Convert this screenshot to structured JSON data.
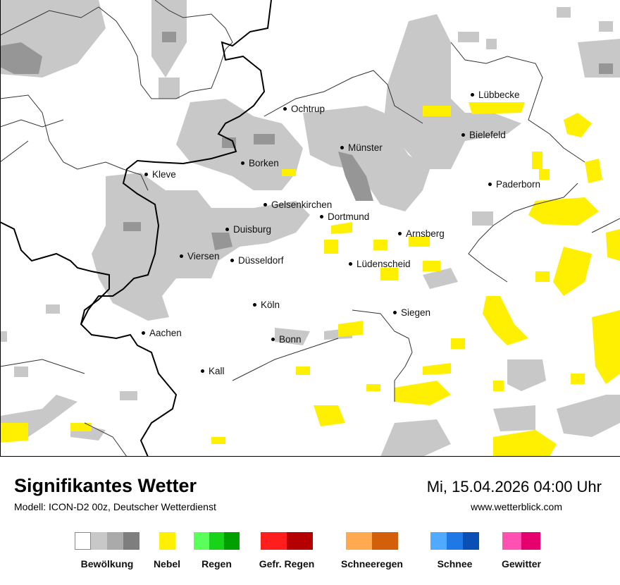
{
  "map": {
    "cities": [
      {
        "name": "Lübbecke",
        "key": "luebbecke"
      },
      {
        "name": "Ochtrup",
        "key": "ochtrup"
      },
      {
        "name": "Bielefeld",
        "key": "bielefeld"
      },
      {
        "name": "Münster",
        "key": "muenster"
      },
      {
        "name": "Kleve",
        "key": "kleve"
      },
      {
        "name": "Borken",
        "key": "borken"
      },
      {
        "name": "Paderborn",
        "key": "paderborn"
      },
      {
        "name": "Gelsenkirchen",
        "key": "gelsenkirchen"
      },
      {
        "name": "Dortmund",
        "key": "dortmund"
      },
      {
        "name": "Duisburg",
        "key": "duisburg"
      },
      {
        "name": "Arnsberg",
        "key": "arnsberg"
      },
      {
        "name": "Viersen",
        "key": "viersen"
      },
      {
        "name": "Düsseldorf",
        "key": "duesseldorf"
      },
      {
        "name": "Lüdenscheid",
        "key": "luedenscheid"
      },
      {
        "name": "Köln",
        "key": "koeln"
      },
      {
        "name": "Siegen",
        "key": "siegen"
      },
      {
        "name": "Aachen",
        "key": "aachen"
      },
      {
        "name": "Bonn",
        "key": "bonn"
      },
      {
        "name": "Kall",
        "key": "kall"
      }
    ],
    "colors": {
      "cloud_light": "#c8c8c8",
      "cloud_dark": "#969696",
      "fog": "#ffef00",
      "border": "#000000",
      "district": "#333333"
    }
  },
  "footer": {
    "title": "Signifikantes Wetter",
    "subtitle": "Modell: ICON-D2 00z, Deutscher Wetterdienst",
    "datetime": "Mi, 15.04.2026 04:00 Uhr",
    "site": "www.wetterblick.com"
  },
  "legend": [
    {
      "label": "Bewölkung",
      "colors": [
        "#ffffff",
        "#c8c8c8",
        "#aaaaaa",
        "#7e7e7e"
      ]
    },
    {
      "label": "Nebel",
      "colors": [
        "#ffef00"
      ]
    },
    {
      "label": "Regen",
      "colors": [
        "#5aff5a",
        "#18d418",
        "#00a000"
      ]
    },
    {
      "label": "Gefr. Regen",
      "colors": [
        "#ff1e1e",
        "#b40000"
      ]
    },
    {
      "label": "Schneeregen",
      "colors": [
        "#ffaa50",
        "#d2600a"
      ]
    },
    {
      "label": "Schnee",
      "colors": [
        "#50aaff",
        "#1e78e6",
        "#0a50b4"
      ]
    },
    {
      "label": "Gewitter",
      "colors": [
        "#ff50b4",
        "#e6006e"
      ]
    }
  ]
}
